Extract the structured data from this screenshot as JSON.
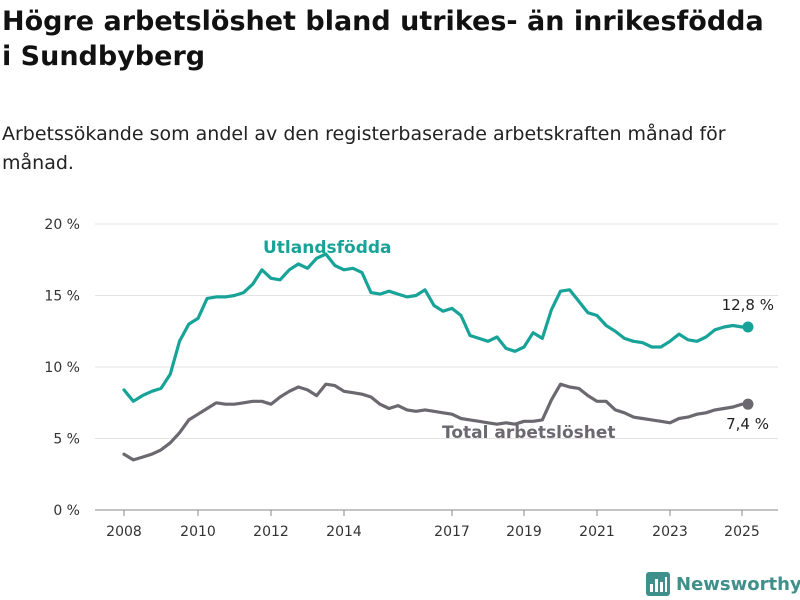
{
  "title": "Högre arbetslöshet bland utrikes- än inrikesfödda i Sundbyberg",
  "subtitle": "Arbetssökande som andel av den registerbaserade arbetskraften månad för månad.",
  "brand": "Newsworthy",
  "colors": {
    "foreign": "#17a398",
    "total": "#6b6870",
    "text": "#111111",
    "grid": "#e3e3e3",
    "brand": "#3f8f8a"
  },
  "chart_data": {
    "type": "line",
    "title": "Högre arbetslöshet bland utrikes- än inrikesfödda i Sundbyberg",
    "subtitle": "Arbetssökande som andel av den registerbaserade arbetskraften månad för månad.",
    "xlabel": "",
    "ylabel": "",
    "ylim": [
      0,
      20
    ],
    "yticks": [
      0,
      5,
      10,
      15,
      20
    ],
    "ytick_labels": [
      "0 %",
      "5 %",
      "10 %",
      "15 %",
      "20 %"
    ],
    "xticks": [
      2008,
      2010,
      2012,
      2014,
      2017,
      2019,
      2021,
      2023,
      2025
    ],
    "xtick_labels": [
      "2008",
      "2010",
      "2012",
      "2014",
      "2017",
      "2019",
      "2021",
      "2023",
      "2025"
    ],
    "grid": "horizontal",
    "annotations": [
      {
        "series": "Utlandsfödda",
        "text": "12,8 %"
      },
      {
        "series": "Total arbetslöshet",
        "text": "7,4 %"
      }
    ],
    "series": [
      {
        "name": "Utlandsfödda",
        "color": "#17a398",
        "x": [
          "2008-01",
          "2008-04",
          "2008-07",
          "2008-10",
          "2009-01",
          "2009-04",
          "2009-07",
          "2009-10",
          "2010-01",
          "2010-04",
          "2010-07",
          "2010-10",
          "2011-01",
          "2011-04",
          "2011-07",
          "2011-10",
          "2012-01",
          "2012-04",
          "2012-07",
          "2012-10",
          "2013-01",
          "2013-04",
          "2013-07",
          "2013-10",
          "2014-01",
          "2014-04",
          "2014-07",
          "2014-10",
          "2015-01",
          "2015-04",
          "2015-07",
          "2015-10",
          "2016-01",
          "2016-04",
          "2016-07",
          "2016-10",
          "2017-01",
          "2017-04",
          "2017-07",
          "2017-10",
          "2018-01",
          "2018-04",
          "2018-07",
          "2018-10",
          "2019-01",
          "2019-04",
          "2019-07",
          "2019-10",
          "2020-01",
          "2020-04",
          "2020-07",
          "2020-10",
          "2021-01",
          "2021-04",
          "2021-07",
          "2021-10",
          "2022-01",
          "2022-04",
          "2022-07",
          "2022-10",
          "2023-01",
          "2023-04",
          "2023-07",
          "2023-10",
          "2024-01",
          "2024-04",
          "2024-07",
          "2024-10",
          "2025-01",
          "2025-03"
        ],
        "values": [
          8.4,
          7.6,
          8.0,
          8.3,
          8.5,
          9.5,
          11.8,
          13.0,
          13.4,
          14.8,
          14.9,
          14.9,
          15.0,
          15.2,
          15.8,
          16.8,
          16.2,
          16.1,
          16.8,
          17.2,
          16.9,
          17.6,
          17.9,
          17.1,
          16.8,
          16.9,
          16.6,
          15.2,
          15.1,
          15.3,
          15.1,
          14.9,
          15.0,
          15.4,
          14.3,
          13.9,
          14.1,
          13.6,
          12.2,
          12.0,
          11.8,
          12.1,
          11.3,
          11.1,
          11.4,
          12.4,
          12.0,
          14.0,
          15.3,
          15.4,
          14.6,
          13.8,
          13.6,
          12.9,
          12.5,
          12.0,
          11.8,
          11.7,
          11.4,
          11.4,
          11.8,
          12.3,
          11.9,
          11.8,
          12.1,
          12.6,
          12.8,
          12.9,
          12.8,
          12.8
        ]
      },
      {
        "name": "Total arbetslöshet",
        "color": "#6b6870",
        "x": [
          "2008-01",
          "2008-04",
          "2008-07",
          "2008-10",
          "2009-01",
          "2009-04",
          "2009-07",
          "2009-10",
          "2010-01",
          "2010-04",
          "2010-07",
          "2010-10",
          "2011-01",
          "2011-04",
          "2011-07",
          "2011-10",
          "2012-01",
          "2012-04",
          "2012-07",
          "2012-10",
          "2013-01",
          "2013-04",
          "2013-07",
          "2013-10",
          "2014-01",
          "2014-04",
          "2014-07",
          "2014-10",
          "2015-01",
          "2015-04",
          "2015-07",
          "2015-10",
          "2016-01",
          "2016-04",
          "2016-07",
          "2016-10",
          "2017-01",
          "2017-04",
          "2017-07",
          "2017-10",
          "2018-01",
          "2018-04",
          "2018-07",
          "2018-10",
          "2019-01",
          "2019-04",
          "2019-07",
          "2019-10",
          "2020-01",
          "2020-04",
          "2020-07",
          "2020-10",
          "2021-01",
          "2021-04",
          "2021-07",
          "2021-10",
          "2022-01",
          "2022-04",
          "2022-07",
          "2022-10",
          "2023-01",
          "2023-04",
          "2023-07",
          "2023-10",
          "2024-01",
          "2024-04",
          "2024-07",
          "2024-10",
          "2025-01",
          "2025-03"
        ],
        "values": [
          3.9,
          3.5,
          3.7,
          3.9,
          4.2,
          4.7,
          5.4,
          6.3,
          6.7,
          7.1,
          7.5,
          7.4,
          7.4,
          7.5,
          7.6,
          7.6,
          7.4,
          7.9,
          8.3,
          8.6,
          8.4,
          8.0,
          8.8,
          8.7,
          8.3,
          8.2,
          8.1,
          7.9,
          7.4,
          7.1,
          7.3,
          7.0,
          6.9,
          7.0,
          6.9,
          6.8,
          6.7,
          6.4,
          6.3,
          6.2,
          6.1,
          6.0,
          6.1,
          6.0,
          6.2,
          6.2,
          6.3,
          7.7,
          8.8,
          8.6,
          8.5,
          8.0,
          7.6,
          7.6,
          7.0,
          6.8,
          6.5,
          6.4,
          6.3,
          6.2,
          6.1,
          6.4,
          6.5,
          6.7,
          6.8,
          7.0,
          7.1,
          7.2,
          7.4,
          7.4
        ]
      }
    ]
  }
}
